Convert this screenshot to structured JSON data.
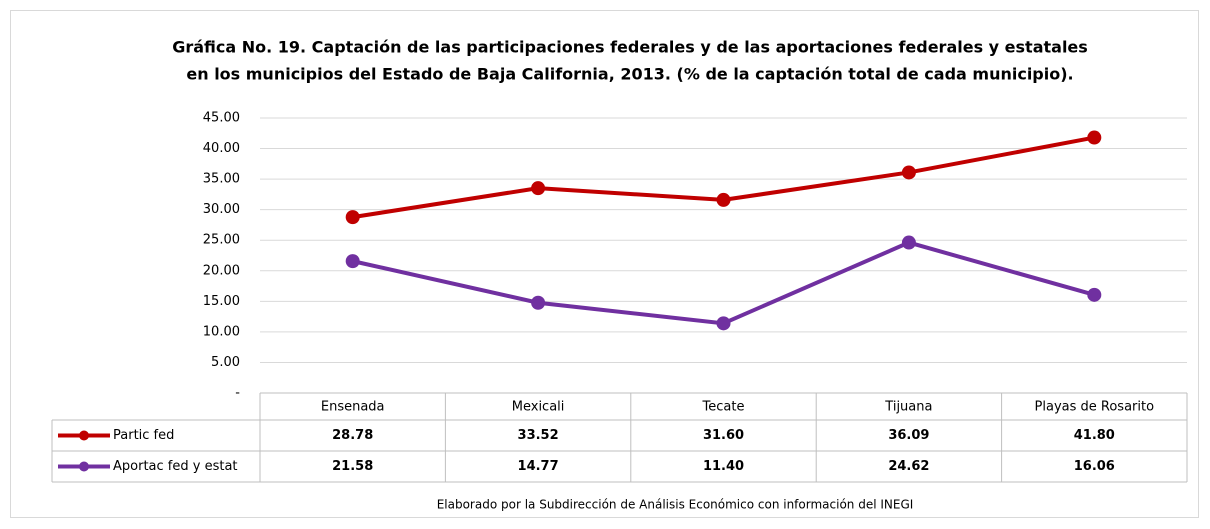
{
  "chart_data": {
    "type": "line",
    "title": [
      "Gráfica No. 19. Captación de las participaciones federales y de las aportaciones federales y estatales",
      "en los municipios del Estado de Baja California, 2013. (% de la captación total de cada municipio)."
    ],
    "categories": [
      "Ensenada",
      "Mexicali",
      "Tecate",
      "Tijuana",
      "Playas de Rosarito"
    ],
    "series": [
      {
        "name": "Partic fed",
        "color": "#c00000",
        "values": [
          28.78,
          33.52,
          31.6,
          36.09,
          41.8
        ],
        "value_labels": [
          "28.78",
          "33.52",
          "31.60",
          "36.09",
          "41.80"
        ]
      },
      {
        "name": "Aportac fed y estat",
        "color": "#7030a0",
        "values": [
          21.58,
          14.77,
          11.4,
          24.62,
          16.06
        ],
        "value_labels": [
          "21.58",
          "14.77",
          "11.40",
          "24.62",
          "16.06"
        ]
      }
    ],
    "ylim": [
      0,
      45
    ],
    "yticks": [
      {
        "value": 0,
        "label": "-"
      },
      {
        "value": 5,
        "label": "5.00"
      },
      {
        "value": 10,
        "label": "10.00"
      },
      {
        "value": 15,
        "label": "15.00"
      },
      {
        "value": 20,
        "label": "20.00"
      },
      {
        "value": 25,
        "label": "25.00"
      },
      {
        "value": 30,
        "label": "30.00"
      },
      {
        "value": 35,
        "label": "35.00"
      },
      {
        "value": 40,
        "label": "40.00"
      },
      {
        "value": 45,
        "label": "45.00"
      }
    ],
    "grid": true,
    "source": "Elaborado por la Subdirección de Análisis Económico con información del INEGI"
  }
}
